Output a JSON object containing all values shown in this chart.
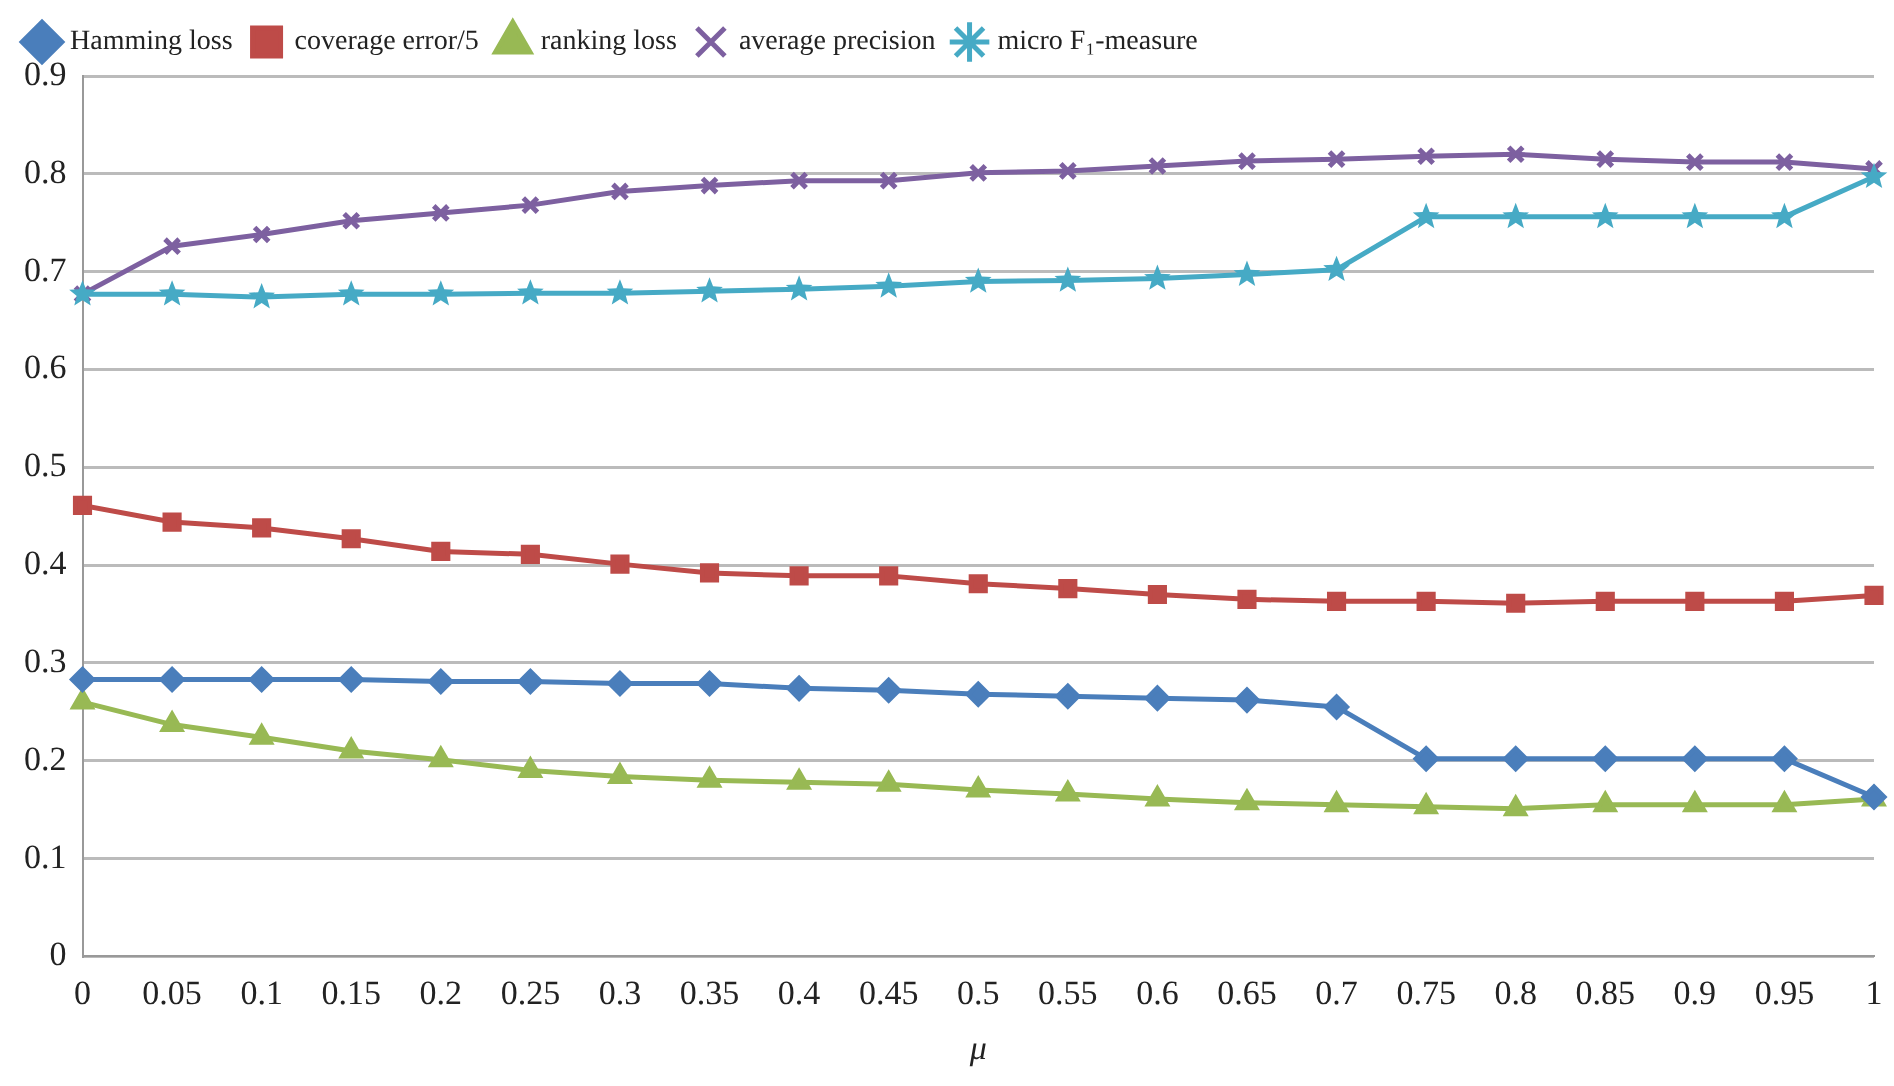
{
  "chart_data": {
    "type": "line",
    "xlabel": "μ",
    "categories": [
      "0",
      "0.05",
      "0.1",
      "0.15",
      "0.2",
      "0.25",
      "0.3",
      "0.35",
      "0.4",
      "0.45",
      "0.5",
      "0.55",
      "0.6",
      "0.65",
      "0.7",
      "0.75",
      "0.8",
      "0.85",
      "0.9",
      "0.95",
      "1"
    ],
    "ylim": [
      0,
      0.9
    ],
    "yticks": [
      0,
      0.1,
      0.2,
      0.3,
      0.4,
      0.5,
      0.6,
      0.7,
      0.8,
      0.9
    ],
    "grid": "y",
    "legend": "top left",
    "line_style": "solid",
    "series": [
      {
        "name": "Hamming loss",
        "color": "#4a7ebb",
        "marker": "diamond",
        "values": [
          0.283,
          0.283,
          0.283,
          0.283,
          0.281,
          0.281,
          0.279,
          0.279,
          0.274,
          0.272,
          0.268,
          0.266,
          0.264,
          0.262,
          0.255,
          0.202,
          0.202,
          0.202,
          0.202,
          0.202,
          0.163
        ]
      },
      {
        "name": "coverage error/5",
        "color": "#be4b48",
        "marker": "square",
        "values": [
          0.461,
          0.444,
          0.438,
          0.427,
          0.414,
          0.411,
          0.401,
          0.392,
          0.389,
          0.389,
          0.381,
          0.376,
          0.37,
          0.365,
          0.363,
          0.363,
          0.361,
          0.363,
          0.363,
          0.363,
          0.369
        ]
      },
      {
        "name": "ranking loss",
        "color": "#98b954",
        "marker": "triangle",
        "values": [
          0.26,
          0.237,
          0.224,
          0.21,
          0.201,
          0.19,
          0.184,
          0.18,
          0.178,
          0.176,
          0.17,
          0.166,
          0.161,
          0.157,
          0.155,
          0.153,
          0.151,
          0.155,
          0.155,
          0.155,
          0.161
        ]
      },
      {
        "name": "average precision",
        "color": "#7d60a0",
        "marker": "cross",
        "values": [
          0.677,
          0.726,
          0.738,
          0.752,
          0.76,
          0.768,
          0.782,
          0.788,
          0.793,
          0.793,
          0.801,
          0.803,
          0.808,
          0.813,
          0.815,
          0.818,
          0.82,
          0.815,
          0.812,
          0.812,
          0.805
        ]
      },
      {
        "name": "micro F₁-measure",
        "color": "#46aac5",
        "marker": "star",
        "values": [
          0.677,
          0.677,
          0.674,
          0.677,
          0.677,
          0.678,
          0.678,
          0.68,
          0.682,
          0.685,
          0.69,
          0.691,
          0.693,
          0.697,
          0.702,
          0.756,
          0.756,
          0.756,
          0.756,
          0.756,
          0.797
        ]
      }
    ]
  }
}
